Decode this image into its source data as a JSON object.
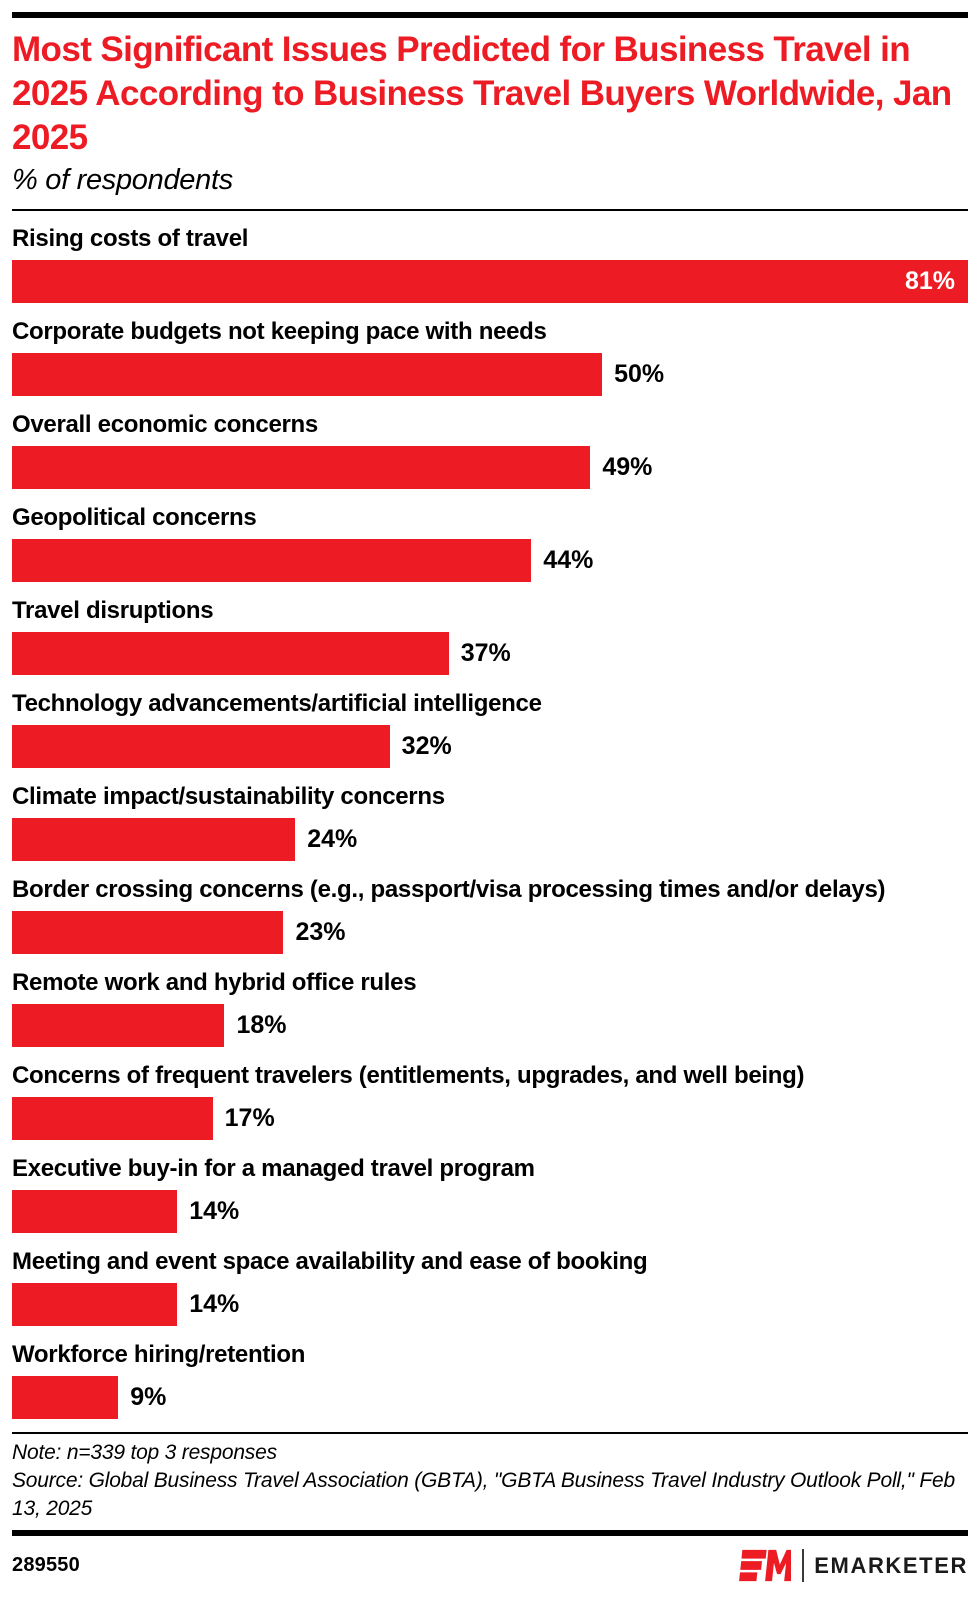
{
  "header": {
    "title": "Most Significant Issues Predicted for Business Travel in 2025 According to Business Travel Buyers Worldwide, Jan 2025",
    "subtitle": "% of respondents"
  },
  "chart_data": {
    "type": "bar",
    "orientation": "horizontal",
    "title": "Most Significant Issues Predicted for Business Travel in 2025 According to Business Travel Buyers Worldwide, Jan 2025",
    "xlabel": "% of respondents",
    "ylabel": "",
    "xlim": [
      0,
      81
    ],
    "grid": false,
    "legend": false,
    "value_suffix": "%",
    "categories": [
      "Rising costs of travel",
      "Corporate budgets not keeping pace with needs",
      "Overall economic concerns",
      "Geopolitical concerns",
      "Travel disruptions",
      "Technology advancements/artificial intelligence",
      "Climate impact/sustainability concerns",
      "Border crossing concerns (e.g., passport/visa processing times and/or delays)",
      "Remote work and hybrid office rules",
      "Concerns of frequent travelers (entitlements, upgrades, and well being)",
      "Executive buy-in for a managed travel program",
      "Meeting and event space availability and ease of booking",
      "Workforce hiring/retention"
    ],
    "values": [
      81,
      50,
      49,
      44,
      37,
      32,
      24,
      23,
      18,
      17,
      14,
      14,
      9
    ]
  },
  "footer": {
    "note": "Note: n=339 top 3 responses",
    "source": "Source: Global Business Travel Association (GBTA), \"GBTA Business Travel Industry Outlook Poll,\" Feb 13, 2025",
    "chart_id": "289550",
    "logo_wordmark": "EMARKETER"
  },
  "colors": {
    "accent_red": "#ED1C24",
    "text_black": "#000000",
    "bar_value_inside": "#FFFFFF"
  }
}
